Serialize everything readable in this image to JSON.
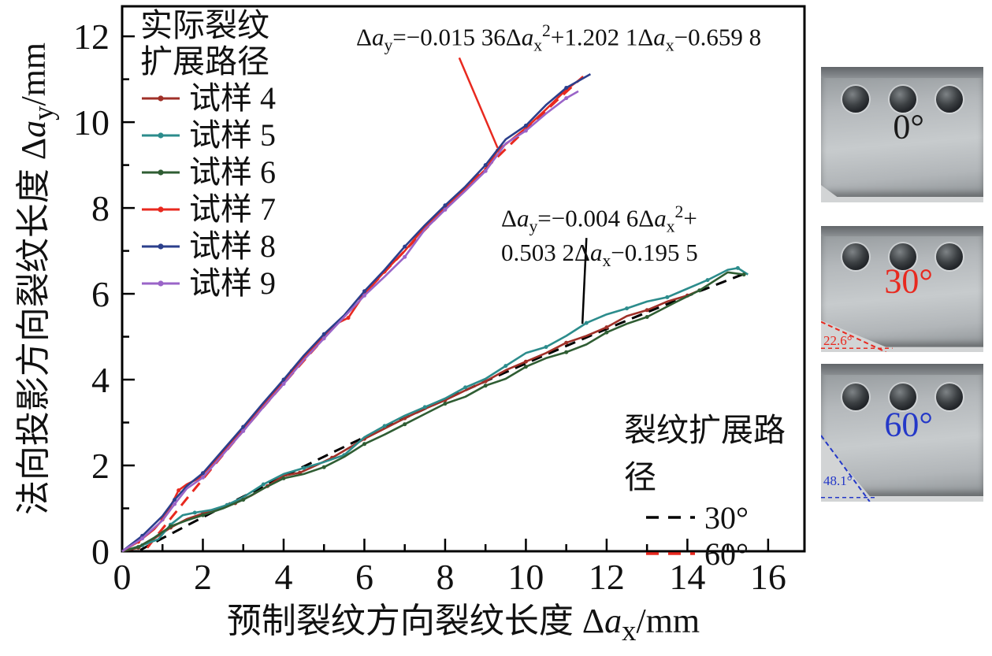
{
  "chart_data": {
    "type": "line",
    "title": "",
    "xlabel": "预制裂纹方向裂纹长度 Δa_{x}/mm",
    "ylabel": "法向投影方向裂纹长度 Δa_{y}/mm",
    "xlim": [
      0,
      16.9
    ],
    "ylim": [
      0,
      12.7
    ],
    "x_ticks": [
      0,
      2,
      4,
      6,
      8,
      10,
      12,
      14,
      16
    ],
    "y_ticks": [
      0,
      2,
      4,
      6,
      8,
      10,
      12
    ],
    "grid": false,
    "legend1": {
      "title_lines": [
        "实际裂纹",
        "扩展路径"
      ],
      "entries": [
        {
          "label": "试样 4",
          "color": "#a03028"
        },
        {
          "label": "试样 5",
          "color": "#2c8c8c"
        },
        {
          "label": "试样 6",
          "color": "#2f5d33"
        },
        {
          "label": "试样 7",
          "color": "#e8291f"
        },
        {
          "label": "试样 8",
          "color": "#2b3f8c"
        },
        {
          "label": "试样 9",
          "color": "#9a64c8"
        }
      ]
    },
    "legend2": {
      "title": "裂纹扩展路径",
      "entries": [
        {
          "label": "30°",
          "color": "#000000"
        },
        {
          "label": "60°",
          "color": "#e8291f"
        }
      ]
    },
    "series": [
      {
        "name": "试样 4",
        "color": "#a03028",
        "points": [
          [
            0,
            0
          ],
          [
            0.4,
            0.08
          ],
          [
            0.8,
            0.3
          ],
          [
            1.2,
            0.55
          ],
          [
            1.6,
            0.75
          ],
          [
            2,
            0.88
          ],
          [
            2.4,
            1.0
          ],
          [
            2.8,
            1.12
          ],
          [
            3.2,
            1.3
          ],
          [
            3.6,
            1.52
          ],
          [
            4,
            1.76
          ],
          [
            4.4,
            1.83
          ],
          [
            4.8,
            2.0
          ],
          [
            5.2,
            2.18
          ],
          [
            5.6,
            2.4
          ],
          [
            6,
            2.62
          ],
          [
            6.5,
            2.86
          ],
          [
            7,
            3.1
          ],
          [
            7.5,
            3.32
          ],
          [
            8,
            3.52
          ],
          [
            8.5,
            3.75
          ],
          [
            9,
            3.96
          ],
          [
            9.5,
            4.22
          ],
          [
            10,
            4.42
          ],
          [
            10.5,
            4.62
          ],
          [
            11,
            4.86
          ],
          [
            11.5,
            5.02
          ],
          [
            12,
            5.22
          ],
          [
            12.5,
            5.48
          ],
          [
            13,
            5.62
          ],
          [
            13.5,
            5.82
          ],
          [
            14,
            5.96
          ],
          [
            14.3,
            6.08
          ]
        ]
      },
      {
        "name": "试样 5",
        "color": "#2c8c8c",
        "points": [
          [
            0,
            0
          ],
          [
            0.5,
            0.14
          ],
          [
            0.9,
            0.28
          ],
          [
            1.2,
            0.62
          ],
          [
            1.5,
            0.84
          ],
          [
            1.8,
            0.9
          ],
          [
            2.2,
            0.96
          ],
          [
            2.6,
            1.08
          ],
          [
            3,
            1.26
          ],
          [
            3.5,
            1.56
          ],
          [
            4,
            1.8
          ],
          [
            4.5,
            1.94
          ],
          [
            5,
            2.08
          ],
          [
            5.5,
            2.24
          ],
          [
            6,
            2.66
          ],
          [
            6.5,
            2.92
          ],
          [
            7,
            3.16
          ],
          [
            7.5,
            3.36
          ],
          [
            8,
            3.56
          ],
          [
            8.5,
            3.82
          ],
          [
            9,
            4.02
          ],
          [
            9.5,
            4.32
          ],
          [
            10,
            4.62
          ],
          [
            10.5,
            4.76
          ],
          [
            11,
            5.02
          ],
          [
            11.5,
            5.32
          ],
          [
            12,
            5.52
          ],
          [
            12.5,
            5.66
          ],
          [
            13,
            5.82
          ],
          [
            13.5,
            5.92
          ],
          [
            14,
            6.12
          ],
          [
            14.5,
            6.32
          ],
          [
            15,
            6.56
          ],
          [
            15.25,
            6.6
          ],
          [
            15.5,
            6.45
          ]
        ]
      },
      {
        "name": "试样 6",
        "color": "#2f5d33",
        "points": [
          [
            0,
            0
          ],
          [
            0.4,
            0.1
          ],
          [
            0.8,
            0.32
          ],
          [
            1.2,
            0.58
          ],
          [
            1.6,
            0.72
          ],
          [
            2,
            0.84
          ],
          [
            2.5,
            1.0
          ],
          [
            3,
            1.2
          ],
          [
            3.5,
            1.46
          ],
          [
            4,
            1.7
          ],
          [
            4.5,
            1.8
          ],
          [
            5,
            1.96
          ],
          [
            5.5,
            2.2
          ],
          [
            6,
            2.5
          ],
          [
            6.5,
            2.72
          ],
          [
            7,
            2.96
          ],
          [
            7.5,
            3.2
          ],
          [
            8,
            3.44
          ],
          [
            8.5,
            3.6
          ],
          [
            9,
            3.86
          ],
          [
            9.5,
            4.02
          ],
          [
            10,
            4.3
          ],
          [
            10.5,
            4.5
          ],
          [
            11,
            4.64
          ],
          [
            11.5,
            4.82
          ],
          [
            12,
            5.1
          ],
          [
            12.5,
            5.3
          ],
          [
            13,
            5.46
          ],
          [
            13.7,
            5.8
          ],
          [
            14.3,
            6.08
          ],
          [
            15,
            6.5
          ],
          [
            15.4,
            6.45
          ]
        ]
      },
      {
        "name": "试样 7",
        "color": "#e8291f",
        "points": [
          [
            0,
            0
          ],
          [
            0.4,
            0.22
          ],
          [
            0.8,
            0.52
          ],
          [
            1,
            0.74
          ],
          [
            1.2,
            1.05
          ],
          [
            1.4,
            1.42
          ],
          [
            1.6,
            1.56
          ],
          [
            1.9,
            1.7
          ],
          [
            2.2,
            2.0
          ],
          [
            2.6,
            2.42
          ],
          [
            3,
            2.86
          ],
          [
            3.4,
            3.3
          ],
          [
            3.8,
            3.74
          ],
          [
            4.2,
            4.2
          ],
          [
            4.6,
            4.6
          ],
          [
            5,
            5.02
          ],
          [
            5.3,
            5.3
          ],
          [
            5.6,
            5.44
          ],
          [
            6,
            6.0
          ],
          [
            6.5,
            6.52
          ],
          [
            7,
            7.0
          ],
          [
            7.5,
            7.56
          ],
          [
            8,
            8.0
          ],
          [
            8.5,
            8.44
          ],
          [
            9,
            8.9
          ],
          [
            9.3,
            9.34
          ],
          [
            9.6,
            9.56
          ],
          [
            10,
            9.86
          ],
          [
            10.5,
            10.3
          ],
          [
            11,
            10.76
          ],
          [
            11.4,
            11.04
          ]
        ]
      },
      {
        "name": "试样 8",
        "color": "#2b3f8c",
        "points": [
          [
            0,
            0
          ],
          [
            0.5,
            0.36
          ],
          [
            1,
            0.82
          ],
          [
            1.3,
            1.2
          ],
          [
            1.6,
            1.52
          ],
          [
            2,
            1.82
          ],
          [
            2.5,
            2.36
          ],
          [
            3,
            2.9
          ],
          [
            3.5,
            3.46
          ],
          [
            4,
            4.0
          ],
          [
            4.5,
            4.56
          ],
          [
            5,
            5.06
          ],
          [
            5.5,
            5.5
          ],
          [
            6,
            6.06
          ],
          [
            6.5,
            6.56
          ],
          [
            7,
            7.1
          ],
          [
            7.5,
            7.6
          ],
          [
            8,
            8.06
          ],
          [
            8.5,
            8.5
          ],
          [
            9,
            9.0
          ],
          [
            9.5,
            9.6
          ],
          [
            10,
            9.92
          ],
          [
            10.5,
            10.4
          ],
          [
            11,
            10.8
          ],
          [
            11.6,
            11.12
          ]
        ]
      },
      {
        "name": "试样 9",
        "color": "#9a64c8",
        "points": [
          [
            0,
            0
          ],
          [
            0.5,
            0.3
          ],
          [
            1,
            0.72
          ],
          [
            1.3,
            1.1
          ],
          [
            1.6,
            1.46
          ],
          [
            2,
            1.72
          ],
          [
            2.5,
            2.26
          ],
          [
            3,
            2.8
          ],
          [
            3.5,
            3.36
          ],
          [
            4,
            3.9
          ],
          [
            4.5,
            4.46
          ],
          [
            5,
            4.96
          ],
          [
            5.5,
            5.46
          ],
          [
            6,
            5.96
          ],
          [
            6.5,
            6.4
          ],
          [
            7,
            6.86
          ],
          [
            7.5,
            7.5
          ],
          [
            8,
            7.96
          ],
          [
            8.5,
            8.4
          ],
          [
            9,
            8.86
          ],
          [
            9.5,
            9.5
          ],
          [
            10,
            9.8
          ],
          [
            10.5,
            10.2
          ],
          [
            11,
            10.56
          ],
          [
            11.3,
            10.72
          ]
        ]
      }
    ],
    "fits": [
      {
        "name": "30°",
        "color": "#000000",
        "dash": "14 9",
        "coeffs": [
          -0.0046,
          0.5032,
          -0.1955
        ],
        "x_range": [
          0.45,
          15.55
        ]
      },
      {
        "name": "60°",
        "color": "#e8291f",
        "dash": "14 9",
        "coeffs": [
          -0.01536,
          1.2021,
          -0.6598
        ],
        "x_range": [
          0.62,
          11.55
        ]
      }
    ],
    "annotations": [
      {
        "id": "eq-60deg",
        "text": "Δa_{y}=−0.015 36Δa_{x}^{2}+1.202 1Δa_{x}−0.659 8",
        "pointer_color": "#e8291f",
        "pointer": [
          [
            8.35,
            11.5
          ],
          [
            9.3,
            9.4
          ]
        ]
      },
      {
        "id": "eq-30deg",
        "lines": [
          "Δa_{y}=−0.004 6Δa_{x}^{2}+",
          "0.503 2Δa_{x}−0.195 5"
        ],
        "pointer_color": "#000000",
        "pointer": [
          [
            11.5,
            7.3
          ],
          [
            11.4,
            5.3
          ]
        ]
      }
    ]
  },
  "photos": [
    {
      "label": "0°",
      "label_color": "#1a1a1a",
      "angle_note": "",
      "angle_color": ""
    },
    {
      "label": "30°",
      "label_color": "#e8291f",
      "angle_note": "22.6°",
      "angle_color": "#e8291f"
    },
    {
      "label": "60°",
      "label_color": "#2438c8",
      "angle_note": "48.1°",
      "angle_color": "#2438c8"
    }
  ]
}
